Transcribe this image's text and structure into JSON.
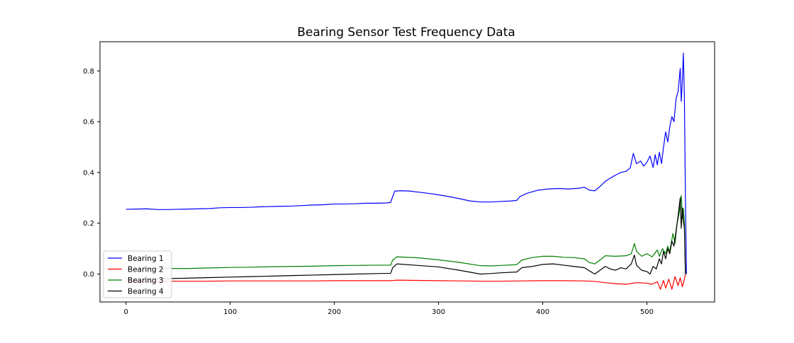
{
  "chart_data": {
    "type": "line",
    "title": "Bearing Sensor Test Frequency Data",
    "xlabel": "",
    "ylabel": "",
    "xlim": [
      -25,
      565
    ],
    "ylim": [
      -0.11,
      0.915
    ],
    "xticks": [
      0,
      100,
      200,
      300,
      400,
      500
    ],
    "yticks": [
      0.0,
      0.2,
      0.4,
      0.6,
      0.8
    ],
    "xtick_labels": [
      "0",
      "100",
      "200",
      "300",
      "400",
      "500"
    ],
    "ytick_labels": [
      "0.0",
      "0.2",
      "0.4",
      "0.6",
      "0.8"
    ],
    "grid": false,
    "legend_position": "lower-left",
    "series": [
      {
        "name": "Bearing 1",
        "color": "#0000ff",
        "points": [
          [
            0,
            0.255
          ],
          [
            10,
            0.256
          ],
          [
            20,
            0.257
          ],
          [
            30,
            0.254
          ],
          [
            40,
            0.254
          ],
          [
            50,
            0.255
          ],
          [
            60,
            0.256
          ],
          [
            70,
            0.257
          ],
          [
            80,
            0.258
          ],
          [
            90,
            0.261
          ],
          [
            100,
            0.262
          ],
          [
            110,
            0.262
          ],
          [
            120,
            0.263
          ],
          [
            130,
            0.265
          ],
          [
            140,
            0.266
          ],
          [
            150,
            0.267
          ],
          [
            160,
            0.268
          ],
          [
            170,
            0.27
          ],
          [
            180,
            0.272
          ],
          [
            190,
            0.273
          ],
          [
            200,
            0.276
          ],
          [
            210,
            0.276
          ],
          [
            220,
            0.277
          ],
          [
            230,
            0.279
          ],
          [
            240,
            0.279
          ],
          [
            250,
            0.28
          ],
          [
            254,
            0.282
          ],
          [
            256,
            0.305
          ],
          [
            258,
            0.327
          ],
          [
            265,
            0.328
          ],
          [
            272,
            0.327
          ],
          [
            280,
            0.323
          ],
          [
            290,
            0.318
          ],
          [
            300,
            0.312
          ],
          [
            310,
            0.305
          ],
          [
            320,
            0.297
          ],
          [
            330,
            0.288
          ],
          [
            340,
            0.284
          ],
          [
            350,
            0.284
          ],
          [
            360,
            0.286
          ],
          [
            370,
            0.288
          ],
          [
            375,
            0.29
          ],
          [
            378,
            0.305
          ],
          [
            385,
            0.318
          ],
          [
            395,
            0.33
          ],
          [
            405,
            0.335
          ],
          [
            415,
            0.337
          ],
          [
            425,
            0.335
          ],
          [
            435,
            0.338
          ],
          [
            440,
            0.342
          ],
          [
            445,
            0.33
          ],
          [
            450,
            0.328
          ],
          [
            455,
            0.345
          ],
          [
            460,
            0.365
          ],
          [
            465,
            0.378
          ],
          [
            470,
            0.39
          ],
          [
            475,
            0.4
          ],
          [
            480,
            0.405
          ],
          [
            484,
            0.418
          ],
          [
            487,
            0.475
          ],
          [
            490,
            0.435
          ],
          [
            494,
            0.445
          ],
          [
            497,
            0.425
          ],
          [
            500,
            0.44
          ],
          [
            503,
            0.465
          ],
          [
            506,
            0.42
          ],
          [
            508,
            0.47
          ],
          [
            510,
            0.43
          ],
          [
            512,
            0.48
          ],
          [
            514,
            0.435
          ],
          [
            516,
            0.5
          ],
          [
            518,
            0.56
          ],
          [
            520,
            0.52
          ],
          [
            522,
            0.58
          ],
          [
            524,
            0.62
          ],
          [
            526,
            0.6
          ],
          [
            528,
            0.69
          ],
          [
            530,
            0.72
          ],
          [
            532,
            0.81
          ],
          [
            533,
            0.68
          ],
          [
            534,
            0.76
          ],
          [
            535,
            0.87
          ],
          [
            536,
            0.7
          ],
          [
            537,
            0.3
          ],
          [
            538,
            0.0
          ]
        ]
      },
      {
        "name": "Bearing 2",
        "color": "#ff0000",
        "points": [
          [
            0,
            -0.028
          ],
          [
            20,
            -0.028
          ],
          [
            40,
            -0.028
          ],
          [
            60,
            -0.028
          ],
          [
            80,
            -0.028
          ],
          [
            100,
            -0.027
          ],
          [
            120,
            -0.027
          ],
          [
            140,
            -0.027
          ],
          [
            160,
            -0.027
          ],
          [
            180,
            -0.027
          ],
          [
            200,
            -0.026
          ],
          [
            220,
            -0.026
          ],
          [
            240,
            -0.026
          ],
          [
            255,
            -0.026
          ],
          [
            260,
            -0.024
          ],
          [
            280,
            -0.025
          ],
          [
            300,
            -0.026
          ],
          [
            320,
            -0.027
          ],
          [
            340,
            -0.028
          ],
          [
            360,
            -0.028
          ],
          [
            380,
            -0.027
          ],
          [
            400,
            -0.026
          ],
          [
            420,
            -0.026
          ],
          [
            440,
            -0.027
          ],
          [
            450,
            -0.029
          ],
          [
            460,
            -0.034
          ],
          [
            470,
            -0.038
          ],
          [
            480,
            -0.04
          ],
          [
            490,
            -0.034
          ],
          [
            500,
            -0.036
          ],
          [
            505,
            -0.04
          ],
          [
            510,
            -0.03
          ],
          [
            513,
            -0.06
          ],
          [
            516,
            -0.025
          ],
          [
            518,
            -0.055
          ],
          [
            521,
            -0.02
          ],
          [
            524,
            -0.06
          ],
          [
            527,
            -0.01
          ],
          [
            530,
            -0.045
          ],
          [
            532,
            -0.015
          ],
          [
            534,
            -0.05
          ],
          [
            536,
            -0.02
          ],
          [
            537,
            0.0
          ]
        ]
      },
      {
        "name": "Bearing 3",
        "color": "#008000",
        "points": [
          [
            0,
            0.02
          ],
          [
            20,
            0.021
          ],
          [
            40,
            0.022
          ],
          [
            60,
            0.022
          ],
          [
            80,
            0.024
          ],
          [
            100,
            0.026
          ],
          [
            120,
            0.027
          ],
          [
            140,
            0.029
          ],
          [
            160,
            0.03
          ],
          [
            180,
            0.031
          ],
          [
            200,
            0.033
          ],
          [
            220,
            0.034
          ],
          [
            240,
            0.035
          ],
          [
            254,
            0.035
          ],
          [
            256,
            0.055
          ],
          [
            260,
            0.068
          ],
          [
            280,
            0.064
          ],
          [
            300,
            0.056
          ],
          [
            320,
            0.046
          ],
          [
            340,
            0.033
          ],
          [
            350,
            0.032
          ],
          [
            360,
            0.034
          ],
          [
            375,
            0.037
          ],
          [
            380,
            0.055
          ],
          [
            390,
            0.065
          ],
          [
            400,
            0.07
          ],
          [
            410,
            0.07
          ],
          [
            420,
            0.066
          ],
          [
            430,
            0.065
          ],
          [
            440,
            0.06
          ],
          [
            445,
            0.045
          ],
          [
            450,
            0.04
          ],
          [
            455,
            0.055
          ],
          [
            460,
            0.072
          ],
          [
            470,
            0.07
          ],
          [
            480,
            0.072
          ],
          [
            485,
            0.08
          ],
          [
            488,
            0.12
          ],
          [
            490,
            0.09
          ],
          [
            495,
            0.07
          ],
          [
            500,
            0.08
          ],
          [
            505,
            0.068
          ],
          [
            510,
            0.095
          ],
          [
            512,
            0.07
          ],
          [
            515,
            0.1
          ],
          [
            518,
            0.08
          ],
          [
            520,
            0.11
          ],
          [
            522,
            0.09
          ],
          [
            525,
            0.16
          ],
          [
            527,
            0.12
          ],
          [
            529,
            0.2
          ],
          [
            531,
            0.24
          ],
          [
            533,
            0.31
          ],
          [
            534,
            0.22
          ],
          [
            535,
            0.26
          ],
          [
            536,
            0.2
          ],
          [
            537,
            0.0
          ]
        ]
      },
      {
        "name": "Bearing 4",
        "color": "#000000",
        "points": [
          [
            0,
            -0.02
          ],
          [
            20,
            -0.019
          ],
          [
            40,
            -0.018
          ],
          [
            60,
            -0.016
          ],
          [
            80,
            -0.014
          ],
          [
            100,
            -0.012
          ],
          [
            120,
            -0.01
          ],
          [
            140,
            -0.008
          ],
          [
            160,
            -0.006
          ],
          [
            180,
            -0.004
          ],
          [
            200,
            -0.002
          ],
          [
            220,
            0.0
          ],
          [
            240,
            0.002
          ],
          [
            254,
            0.003
          ],
          [
            256,
            0.025
          ],
          [
            260,
            0.04
          ],
          [
            280,
            0.034
          ],
          [
            300,
            0.028
          ],
          [
            320,
            0.015
          ],
          [
            340,
            0.0
          ],
          [
            350,
            0.002
          ],
          [
            360,
            0.005
          ],
          [
            375,
            0.008
          ],
          [
            380,
            0.025
          ],
          [
            390,
            0.03
          ],
          [
            400,
            0.038
          ],
          [
            410,
            0.04
          ],
          [
            420,
            0.035
          ],
          [
            430,
            0.03
          ],
          [
            440,
            0.025
          ],
          [
            445,
            0.012
          ],
          [
            450,
            0.0
          ],
          [
            455,
            0.015
          ],
          [
            460,
            0.03
          ],
          [
            465,
            0.02
          ],
          [
            470,
            0.015
          ],
          [
            475,
            0.025
          ],
          [
            480,
            0.02
          ],
          [
            485,
            0.04
          ],
          [
            488,
            0.075
          ],
          [
            490,
            0.035
          ],
          [
            495,
            0.015
          ],
          [
            500,
            0.01
          ],
          [
            503,
            0.0
          ],
          [
            506,
            0.03
          ],
          [
            509,
            0.02
          ],
          [
            512,
            0.06
          ],
          [
            514,
            0.04
          ],
          [
            516,
            0.09
          ],
          [
            518,
            0.06
          ],
          [
            520,
            0.1
          ],
          [
            522,
            0.08
          ],
          [
            524,
            0.13
          ],
          [
            526,
            0.11
          ],
          [
            528,
            0.17
          ],
          [
            530,
            0.23
          ],
          [
            532,
            0.3
          ],
          [
            533,
            0.18
          ],
          [
            534,
            0.26
          ],
          [
            535,
            0.21
          ],
          [
            536,
            0.18
          ],
          [
            537,
            0.0
          ]
        ]
      }
    ]
  }
}
